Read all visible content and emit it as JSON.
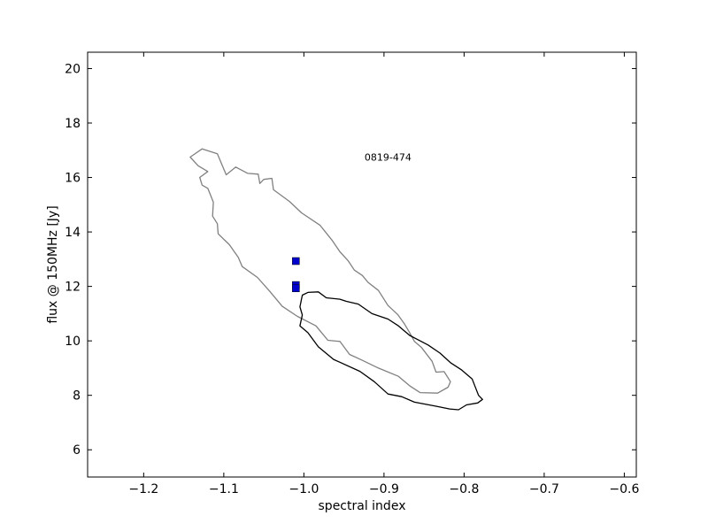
{
  "chart_data": {
    "type": "scatter",
    "title": "",
    "xlabel": "spectral index",
    "ylabel": "flux @ 150MHz [Jy]",
    "xlim": [
      -1.27,
      -0.585
    ],
    "ylim": [
      5.0,
      20.6
    ],
    "grid": false,
    "x_ticks": [
      -1.2,
      -1.1,
      -1.0,
      -0.9,
      -0.8,
      -0.7,
      -0.6
    ],
    "x_tick_labels": [
      "−1.2",
      "−1.1",
      "−1.0",
      "−0.9",
      "−0.8",
      "−0.7",
      "−0.6"
    ],
    "y_ticks": [
      6,
      8,
      10,
      12,
      14,
      16,
      18,
      20
    ],
    "y_tick_labels": [
      "6",
      "8",
      "10",
      "12",
      "14",
      "16",
      "18",
      "20"
    ],
    "annotations": [
      {
        "text": "0819-474",
        "x": -0.895,
        "y": 16.75
      }
    ],
    "points": {
      "color": "#0000cc",
      "values": [
        {
          "x": -1.01,
          "y": 12.93
        },
        {
          "x": -1.01,
          "y": 12.05
        },
        {
          "x": -1.01,
          "y": 11.93
        }
      ]
    },
    "contours": [
      {
        "color": "#808080",
        "points": [
          [
            -1.142,
            16.75
          ],
          [
            -1.127,
            17.05
          ],
          [
            -1.108,
            16.87
          ],
          [
            -1.097,
            16.1
          ],
          [
            -1.085,
            16.38
          ],
          [
            -1.07,
            16.15
          ],
          [
            -1.057,
            16.12
          ],
          [
            -1.055,
            15.78
          ],
          [
            -1.05,
            15.93
          ],
          [
            -1.04,
            15.97
          ],
          [
            -1.038,
            15.55
          ],
          [
            -1.018,
            15.12
          ],
          [
            -1.003,
            14.7
          ],
          [
            -0.98,
            14.25
          ],
          [
            -0.965,
            13.7
          ],
          [
            -0.955,
            13.27
          ],
          [
            -0.945,
            12.95
          ],
          [
            -0.937,
            12.6
          ],
          [
            -0.927,
            12.4
          ],
          [
            -0.92,
            12.15
          ],
          [
            -0.907,
            11.85
          ],
          [
            -0.895,
            11.3
          ],
          [
            -0.883,
            10.97
          ],
          [
            -0.875,
            10.65
          ],
          [
            -0.868,
            10.3
          ],
          [
            -0.862,
            9.98
          ],
          [
            -0.853,
            9.75
          ],
          [
            -0.84,
            9.25
          ],
          [
            -0.835,
            8.85
          ],
          [
            -0.825,
            8.87
          ],
          [
            -0.817,
            8.5
          ],
          [
            -0.82,
            8.3
          ],
          [
            -0.833,
            8.08
          ],
          [
            -0.855,
            8.1
          ],
          [
            -0.868,
            8.35
          ],
          [
            -0.882,
            8.7
          ],
          [
            -0.907,
            9.0
          ],
          [
            -0.928,
            9.3
          ],
          [
            -0.943,
            9.5
          ],
          [
            -0.955,
            9.98
          ],
          [
            -0.97,
            10.02
          ],
          [
            -0.985,
            10.55
          ],
          [
            -1.008,
            10.9
          ],
          [
            -1.027,
            11.27
          ],
          [
            -1.043,
            11.83
          ],
          [
            -1.058,
            12.33
          ],
          [
            -1.077,
            12.73
          ],
          [
            -1.082,
            13.07
          ],
          [
            -1.093,
            13.53
          ],
          [
            -1.107,
            13.93
          ],
          [
            -1.108,
            14.3
          ],
          [
            -1.114,
            14.58
          ],
          [
            -1.113,
            15.09
          ],
          [
            -1.12,
            15.6
          ],
          [
            -1.127,
            15.72
          ],
          [
            -1.13,
            16.0
          ],
          [
            -1.12,
            16.22
          ],
          [
            -1.132,
            16.43
          ],
          [
            -1.142,
            16.75
          ]
        ]
      },
      {
        "color": "#000000",
        "points": [
          [
            -1.005,
            11.25
          ],
          [
            -1.002,
            11.68
          ],
          [
            -0.995,
            11.78
          ],
          [
            -0.982,
            11.8
          ],
          [
            -0.972,
            11.58
          ],
          [
            -0.955,
            11.53
          ],
          [
            -0.947,
            11.45
          ],
          [
            -0.932,
            11.35
          ],
          [
            -0.915,
            11.0
          ],
          [
            -0.895,
            10.8
          ],
          [
            -0.882,
            10.55
          ],
          [
            -0.868,
            10.2
          ],
          [
            -0.845,
            9.85
          ],
          [
            -0.83,
            9.55
          ],
          [
            -0.817,
            9.2
          ],
          [
            -0.803,
            8.93
          ],
          [
            -0.79,
            8.6
          ],
          [
            -0.782,
            8.0
          ],
          [
            -0.777,
            7.85
          ],
          [
            -0.783,
            7.72
          ],
          [
            -0.797,
            7.65
          ],
          [
            -0.807,
            7.47
          ],
          [
            -0.818,
            7.5
          ],
          [
            -0.835,
            7.6
          ],
          [
            -0.862,
            7.75
          ],
          [
            -0.878,
            7.95
          ],
          [
            -0.895,
            8.05
          ],
          [
            -0.912,
            8.5
          ],
          [
            -0.93,
            8.88
          ],
          [
            -0.963,
            9.32
          ],
          [
            -0.982,
            9.78
          ],
          [
            -0.995,
            10.3
          ],
          [
            -1.005,
            10.55
          ],
          [
            -1.002,
            10.95
          ],
          [
            -1.005,
            11.25
          ]
        ]
      }
    ]
  }
}
